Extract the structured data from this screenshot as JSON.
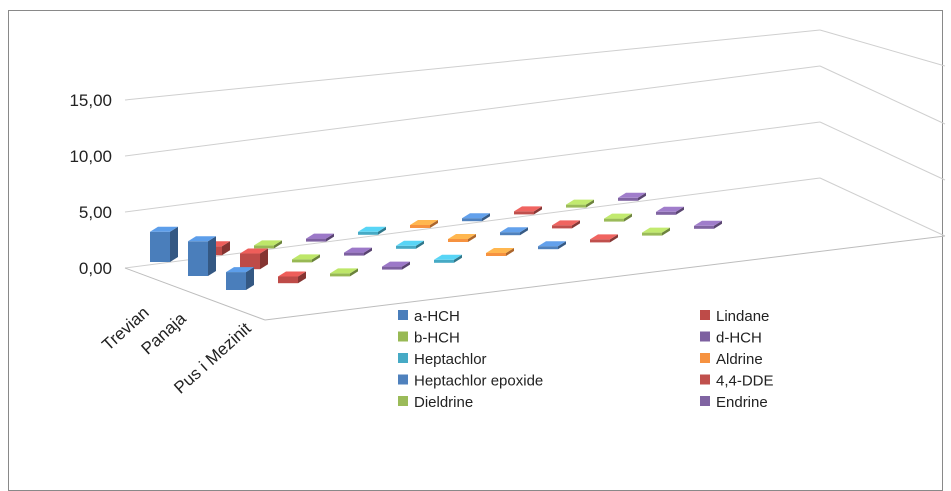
{
  "chart_data": {
    "type": "bar",
    "title": "",
    "xlabel": "",
    "ylabel": "",
    "ylim": [
      0,
      15
    ],
    "yticks": [
      "0,00",
      "5,00",
      "10,00",
      "15,00"
    ],
    "categories": [
      "Trevian",
      "Panaja",
      "Pus i Mezinit"
    ],
    "grid": true,
    "legend_position": "bottom",
    "series": [
      {
        "name": "a-HCH",
        "color": "#4A7EBB",
        "values": [
          2.7,
          3.1,
          1.6
        ]
      },
      {
        "name": "Lindane",
        "color": "#BE4B48",
        "values": [
          0.8,
          1.4,
          0.6
        ]
      },
      {
        "name": "b-HCH",
        "color": "#98B954",
        "values": [
          0.0,
          0.0,
          0.0
        ]
      },
      {
        "name": "d-HCH",
        "color": "#7D60A0",
        "values": [
          0.0,
          0.0,
          0.0
        ]
      },
      {
        "name": "Heptachlor",
        "color": "#46AAC5",
        "values": [
          0.0,
          0.0,
          0.0
        ]
      },
      {
        "name": "Aldrine",
        "color": "#F69240",
        "values": [
          0.0,
          0.0,
          0.0
        ]
      },
      {
        "name": "Heptachlor epoxide",
        "color": "#4F81BD",
        "values": [
          0.0,
          0.0,
          0.0
        ]
      },
      {
        "name": "4,4-DDE",
        "color": "#C0504D",
        "values": [
          0.0,
          0.0,
          0.0
        ]
      },
      {
        "name": "Dieldrine",
        "color": "#9BBB59",
        "values": [
          0.0,
          0.0,
          0.0
        ]
      },
      {
        "name": "Endrine",
        "color": "#8064A2",
        "values": [
          0.0,
          0.0,
          0.0
        ]
      }
    ]
  }
}
